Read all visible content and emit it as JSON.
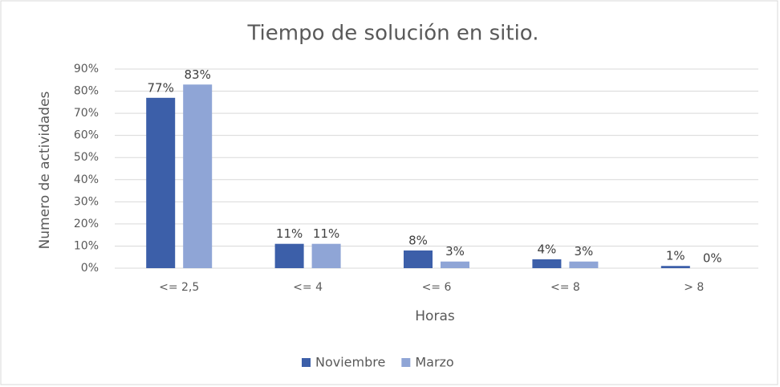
{
  "chart_data": {
    "type": "bar",
    "title": "Tiempo de solución en sitio.",
    "x_label": "Horas",
    "y_label": "Numero de actividades",
    "categories": [
      "<= 2,5",
      "<= 4",
      "<= 6",
      "<= 8",
      "> 8"
    ],
    "series": [
      {
        "name": "Noviembre",
        "color": "#3c5fa9",
        "values": [
          77,
          11,
          8,
          4,
          1
        ],
        "value_labels": [
          "77%",
          "11%",
          "8%",
          "4%",
          "1%"
        ]
      },
      {
        "name": "Marzo",
        "color": "#8fa5d6",
        "values": [
          83,
          11,
          3,
          3,
          0
        ],
        "value_labels": [
          "83%",
          "11%",
          "3%",
          "3%",
          "0%"
        ]
      }
    ],
    "ylim": [
      0,
      90
    ],
    "yticks": [
      {
        "value": 0,
        "label": "0%"
      },
      {
        "value": 10,
        "label": "10%"
      },
      {
        "value": 20,
        "label": "20%"
      },
      {
        "value": 30,
        "label": "30%"
      },
      {
        "value": 40,
        "label": "40%"
      },
      {
        "value": 50,
        "label": "50%"
      },
      {
        "value": 60,
        "label": "60%"
      },
      {
        "value": 70,
        "label": "70%"
      },
      {
        "value": 80,
        "label": "80%"
      },
      {
        "value": 90,
        "label": "90%"
      }
    ],
    "grid": true,
    "legend": "bottom"
  }
}
